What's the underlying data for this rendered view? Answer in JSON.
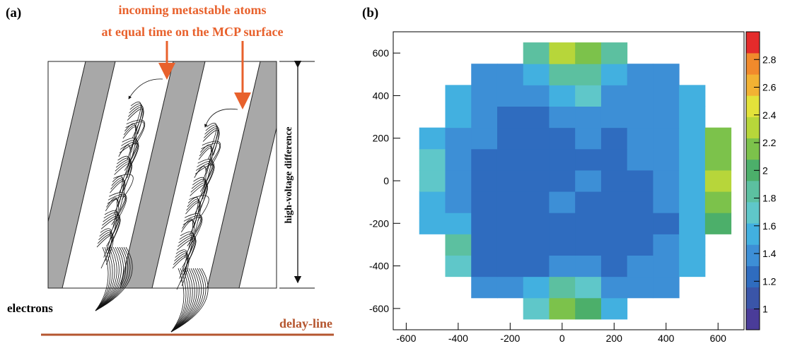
{
  "panel_a": {
    "label": "(a)",
    "incoming_line1": "incoming metastable atoms",
    "incoming_line2": "at equal time on the MCP surface",
    "voltage_label": "high-voltage difference",
    "electrons_label": "electrons",
    "delay_line_label": "delay-line"
  },
  "chart_data": {
    "type": "heatmap",
    "panel_label": "(b)",
    "xbins": [
      -550,
      -450,
      -350,
      -250,
      -150,
      -50,
      50,
      150,
      250,
      350,
      450,
      550,
      650
    ],
    "ybins": [
      -650,
      -550,
      -450,
      -350,
      -250,
      -150,
      -50,
      50,
      150,
      250,
      350,
      450,
      550,
      650
    ],
    "z": [
      [
        null,
        null,
        null,
        null,
        1.7,
        2.1,
        2.0,
        1.6,
        null,
        null,
        null,
        null
      ],
      [
        null,
        null,
        1.4,
        1.35,
        1.5,
        1.8,
        1.7,
        1.45,
        1.4,
        1.45,
        null,
        null
      ],
      [
        null,
        1.75,
        1.3,
        1.25,
        1.3,
        1.4,
        1.35,
        1.3,
        1.35,
        1.4,
        1.5,
        null
      ],
      [
        null,
        1.8,
        1.3,
        1.25,
        1.25,
        1.3,
        1.3,
        1.25,
        1.3,
        1.35,
        1.55,
        null
      ],
      [
        1.5,
        1.55,
        1.3,
        1.25,
        1.2,
        1.3,
        1.3,
        1.25,
        1.25,
        1.3,
        1.5,
        2.0
      ],
      [
        1.6,
        1.4,
        1.3,
        1.25,
        1.3,
        1.35,
        1.3,
        1.25,
        1.3,
        1.35,
        1.5,
        2.2
      ],
      [
        1.7,
        1.4,
        1.3,
        1.3,
        1.25,
        1.3,
        1.35,
        1.3,
        1.3,
        1.35,
        1.5,
        2.3
      ],
      [
        1.65,
        1.4,
        1.3,
        1.25,
        1.25,
        1.3,
        1.3,
        1.3,
        1.35,
        1.4,
        1.5,
        2.1
      ],
      [
        1.55,
        1.45,
        1.35,
        1.3,
        1.25,
        1.3,
        1.35,
        1.3,
        1.35,
        1.4,
        1.55,
        2.2
      ],
      [
        null,
        1.5,
        1.4,
        1.3,
        1.3,
        1.4,
        1.45,
        1.35,
        1.35,
        1.45,
        1.5,
        null
      ],
      [
        null,
        1.5,
        1.45,
        1.4,
        1.4,
        1.6,
        1.65,
        1.45,
        1.4,
        1.45,
        1.5,
        null
      ],
      [
        null,
        null,
        1.45,
        1.45,
        1.55,
        1.9,
        1.9,
        1.6,
        1.45,
        1.45,
        null,
        null
      ],
      [
        null,
        null,
        null,
        null,
        1.8,
        2.3,
        2.2,
        1.8,
        null,
        null,
        null,
        null
      ]
    ],
    "xlim": [
      -650,
      700
    ],
    "ylim": [
      -700,
      700
    ],
    "xticks": [
      -600,
      -400,
      -200,
      0,
      200,
      400,
      600
    ],
    "yticks": [
      -600,
      -400,
      -200,
      0,
      200,
      400,
      600
    ],
    "zlim": [
      0.85,
      3
    ],
    "zticks": [
      1,
      1.2,
      1.4,
      1.6,
      1.8,
      2,
      2.2,
      2.4,
      2.6,
      2.8
    ],
    "colorscale": [
      "#4a3c99",
      "#3a55a8",
      "#2f6cbf",
      "#3d8fd6",
      "#42b0e0",
      "#5fc7c9",
      "#5cc0a0",
      "#4caf6a",
      "#7cc24b",
      "#b7d63a",
      "#e3e23a",
      "#f2b233",
      "#f18a2c",
      "#e42b2b"
    ]
  }
}
